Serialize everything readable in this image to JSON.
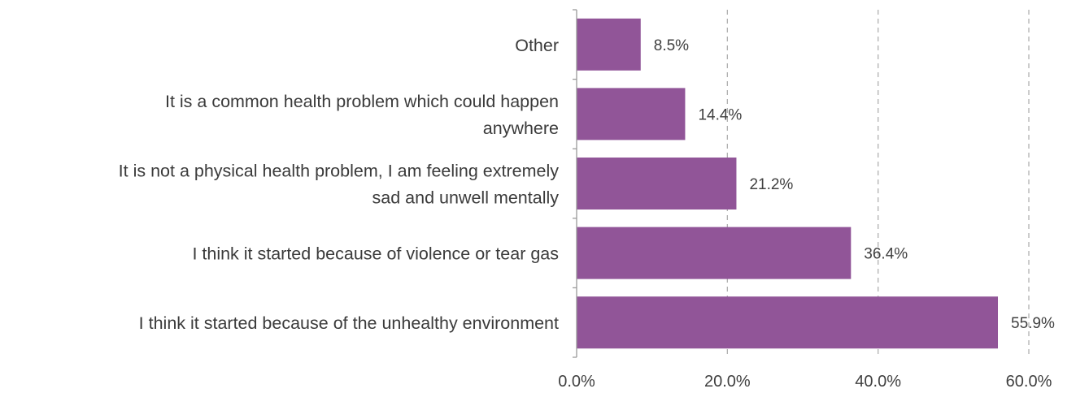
{
  "chart_data": {
    "type": "bar",
    "orientation": "horizontal",
    "title": "",
    "xlabel": "",
    "ylabel": "",
    "categories": [
      "Other",
      "It is a common health problem which could happen anywhere",
      "It is not a physical health problem, I am feeling extremely sad and unwell mentally",
      "I think it started because of violence or tear gas",
      "I think it started because of the unhealthy environment"
    ],
    "category_lines": [
      [
        "Other"
      ],
      [
        "It is a common health problem which could happen",
        "anywhere"
      ],
      [
        "It is not a physical health problem, I am feeling extremely",
        "sad and unwell mentally"
      ],
      [
        "I think it started because of violence or tear gas"
      ],
      [
        "I think it started because of the unhealthy environment"
      ]
    ],
    "values": [
      8.5,
      14.4,
      21.2,
      36.4,
      55.9
    ],
    "value_labels": [
      "8.5%",
      "14.4%",
      "21.2%",
      "36.4%",
      "55.9%"
    ],
    "xlim": [
      0,
      60
    ],
    "x_ticks": [
      0,
      20,
      40,
      60
    ],
    "x_tick_labels": [
      "0.0%",
      "20.0%",
      "40.0%",
      "60.0%"
    ],
    "grid": true,
    "legend": "none",
    "bar_color": "#915598"
  }
}
